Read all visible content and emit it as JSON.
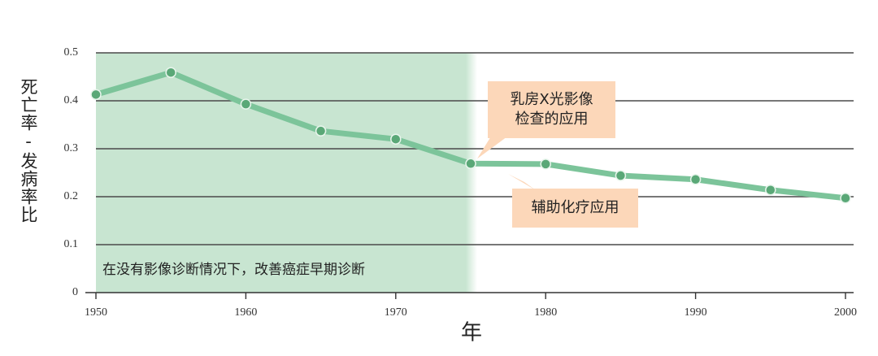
{
  "chart_data": {
    "type": "line",
    "y_label": "死亡率-发病率比",
    "x_label": "年",
    "x": [
      1950,
      1955,
      1960,
      1965,
      1970,
      1975,
      1980,
      1985,
      1990,
      1995,
      2000
    ],
    "series": [
      {
        "name": "死亡率-发病率比",
        "color": "#7cc49a",
        "values": [
          0.413,
          0.459,
          0.393,
          0.337,
          0.32,
          0.269,
          0.268,
          0.244,
          0.236,
          0.214,
          0.197
        ]
      }
    ],
    "marker_color": "#5aa877",
    "xlim": [
      1950,
      2000
    ],
    "xticks": [
      1950,
      1960,
      1970,
      1980,
      1990,
      2000
    ],
    "ylim": [
      0,
      0.5
    ],
    "yticks": [
      0,
      0.1,
      0.2,
      0.3,
      0.4,
      0.5
    ],
    "grid": true,
    "shaded_region": {
      "x": [
        1950,
        1975
      ],
      "color": "#c8e5d1",
      "label": "在没有影像诊断情况下，改善癌症早期诊断"
    },
    "annotations": [
      {
        "lines": [
          "乳房X光影像",
          "检查的应用"
        ],
        "color": "#fcd7b9"
      },
      {
        "lines": [
          "辅助化疗应用"
        ],
        "color": "#fcd7b9"
      }
    ]
  }
}
